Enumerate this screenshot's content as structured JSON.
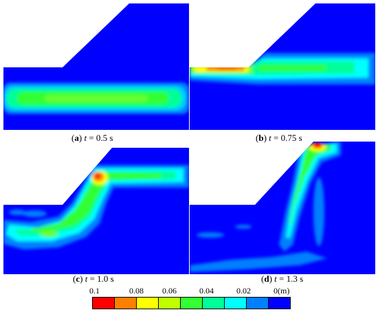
{
  "panels": [
    {
      "id": "a",
      "letter": "a",
      "t_symbol": "t",
      "value": "= 0.5 s"
    },
    {
      "id": "b",
      "letter": "b",
      "t_symbol": "t",
      "value": "= 0.75 s"
    },
    {
      "id": "c",
      "letter": "c",
      "t_symbol": "t",
      "value": "= 1.0 s"
    },
    {
      "id": "d",
      "letter": "d",
      "t_symbol": "t",
      "value": "= 1.3 s"
    }
  ],
  "colorbar": {
    "ticks": [
      "0.1",
      "0.08",
      "0.06",
      "0.04",
      "0.02",
      "0(m)"
    ],
    "colors": [
      "#ff0000",
      "#ff7f00",
      "#ffff00",
      "#bfff00",
      "#33ff33",
      "#00ff99",
      "#00ffff",
      "#0080ff",
      "#0000ff"
    ]
  },
  "palette": {
    "background_blue": "#0000ff",
    "cyan": "#00ffff",
    "light_blue": "#0080ff",
    "green": "#00ff66",
    "yellow": "#ffff00",
    "orange": "#ff8000",
    "red": "#ff0000"
  }
}
